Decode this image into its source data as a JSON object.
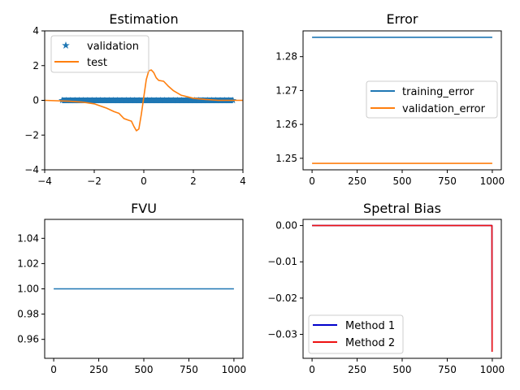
{
  "chart_data": [
    {
      "id": "estimation",
      "type": "line",
      "title": "Estimation",
      "xlim": [
        -4,
        4
      ],
      "ylim": [
        -4,
        4
      ],
      "xticks": [
        -4,
        -2,
        0,
        2,
        4
      ],
      "xtick_labels": [
        "−4",
        "−2",
        "0",
        "2",
        "4"
      ],
      "yticks": [
        -4,
        -2,
        0,
        2,
        4
      ],
      "ytick_labels": [
        "−4",
        "−2",
        "0",
        "2",
        "4"
      ],
      "legend_position": "top-left",
      "series": [
        {
          "name": "validation",
          "style": "star-markers",
          "color": "#1f77b4",
          "x_range": [
            -3.3,
            3.6
          ],
          "y": 0.0
        },
        {
          "name": "test",
          "style": "line",
          "color": "#ff7f0e",
          "x": [
            -4.0,
            -3.0,
            -2.5,
            -2.0,
            -1.5,
            -1.2,
            -1.0,
            -0.8,
            -0.6,
            -0.5,
            -0.4,
            -0.3,
            -0.2,
            -0.1,
            0.0,
            0.1,
            0.2,
            0.3,
            0.4,
            0.5,
            0.6,
            0.8,
            1.0,
            1.2,
            1.5,
            2.0,
            2.5,
            3.0,
            4.0
          ],
          "y": [
            0.0,
            -0.05,
            -0.1,
            -0.2,
            -0.45,
            -0.65,
            -0.75,
            -1.05,
            -1.15,
            -1.2,
            -1.5,
            -1.75,
            -1.65,
            -0.8,
            0.2,
            1.2,
            1.7,
            1.75,
            1.6,
            1.3,
            1.15,
            1.1,
            0.8,
            0.55,
            0.3,
            0.12,
            0.05,
            0.0,
            0.0
          ]
        }
      ]
    },
    {
      "id": "error",
      "type": "line",
      "title": "Error",
      "xlim": [
        -50,
        1050
      ],
      "ylim": [
        1.2466,
        1.2876
      ],
      "xticks": [
        0,
        250,
        500,
        750,
        1000
      ],
      "xtick_labels": [
        "0",
        "250",
        "500",
        "750",
        "1000"
      ],
      "yticks": [
        1.25,
        1.26,
        1.27,
        1.28
      ],
      "ytick_labels": [
        "1.25",
        "1.26",
        "1.27",
        "1.28"
      ],
      "legend_position": "center-right",
      "series": [
        {
          "name": "training_error",
          "color": "#1f77b4",
          "x": [
            0,
            1000
          ],
          "y": [
            1.2857,
            1.2857
          ]
        },
        {
          "name": "validation_error",
          "color": "#ff7f0e",
          "x": [
            0,
            1000
          ],
          "y": [
            1.2485,
            1.2485
          ]
        }
      ]
    },
    {
      "id": "fvu",
      "type": "line",
      "title": "FVU",
      "xlim": [
        -50,
        1050
      ],
      "ylim": [
        0.945,
        1.055
      ],
      "xticks": [
        0,
        250,
        500,
        750,
        1000
      ],
      "xtick_labels": [
        "0",
        "250",
        "500",
        "750",
        "1000"
      ],
      "yticks": [
        0.96,
        0.98,
        1.0,
        1.02,
        1.04
      ],
      "ytick_labels": [
        "0.96",
        "0.98",
        "1.00",
        "1.02",
        "1.04"
      ],
      "series": [
        {
          "name": "FVU",
          "color": "#1f77b4",
          "x": [
            0,
            1000
          ],
          "y": [
            1.0,
            1.0
          ]
        }
      ]
    },
    {
      "id": "spectral_bias",
      "type": "line",
      "title": "Spetral Bias",
      "xlim": [
        -50,
        1050
      ],
      "ylim": [
        -0.0366,
        0.0017
      ],
      "xticks": [
        0,
        250,
        500,
        750,
        1000
      ],
      "xtick_labels": [
        "0",
        "250",
        "500",
        "750",
        "1000"
      ],
      "yticks": [
        0.0,
        -0.01,
        -0.02,
        -0.03
      ],
      "ytick_labels": [
        "0.00",
        "−0.01",
        "−0.02",
        "−0.03"
      ],
      "legend_position": "lower-left",
      "series": [
        {
          "name": "Method 1",
          "color": "#0000cc",
          "x": [
            0,
            998,
            999
          ],
          "y": [
            0.0,
            0.0,
            -0.0348
          ]
        },
        {
          "name": "Method 2",
          "color": "#ee1111",
          "x": [
            0,
            998,
            999
          ],
          "y": [
            0.0,
            0.0,
            -0.0348
          ]
        }
      ]
    }
  ]
}
